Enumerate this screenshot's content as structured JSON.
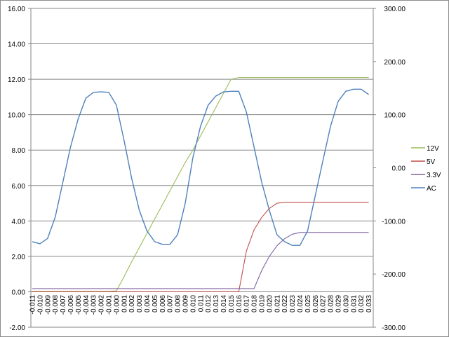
{
  "chart_data": {
    "type": "line",
    "title": "",
    "xlabel": "",
    "ylabel": "",
    "categories": [
      "-0.011",
      "-0.010",
      "-0.009",
      "-0.008",
      "-0.007",
      "-0.006",
      "-0.005",
      "-0.004",
      "-0.003",
      "-0.002",
      "-0.001",
      "-0.000",
      "0.001",
      "0.002",
      "0.003",
      "0.004",
      "0.005",
      "0.006",
      "0.007",
      "0.008",
      "0.009",
      "0.010",
      "0.011",
      "0.012",
      "0.013",
      "0.014",
      "0.015",
      "0.016",
      "0.017",
      "0.018",
      "0.019",
      "0.020",
      "0.021",
      "0.022",
      "0.023",
      "0.024",
      "0.025",
      "0.026",
      "0.027",
      "0.028",
      "0.029",
      "0.030",
      "0.031",
      "0.032",
      "0.033"
    ],
    "y_left": {
      "ylim": [
        -2,
        16
      ],
      "ticks": [
        "-2.00",
        "0.00",
        "2.00",
        "4.00",
        "6.00",
        "8.00",
        "10.00",
        "12.00",
        "14.00",
        "16.00"
      ]
    },
    "y_right": {
      "ylim": [
        -300,
        300
      ],
      "ticks": [
        "-300.00",
        "-200.00",
        "-100.00",
        "0.00",
        "100.00",
        "200.00",
        "300.00"
      ]
    },
    "grid": "horizontal",
    "legend_position": "right",
    "series": [
      {
        "name": "12V",
        "axis": "left",
        "color": "#9BBB59",
        "values": [
          0.02,
          0.02,
          0.02,
          0.02,
          0.02,
          0.02,
          0.02,
          0.02,
          0.02,
          0.02,
          0.02,
          0.05,
          0.85,
          1.7,
          2.5,
          3.3,
          4.1,
          4.9,
          5.7,
          6.5,
          7.3,
          8.0,
          8.8,
          9.6,
          10.4,
          11.2,
          12.0,
          12.1,
          12.1,
          12.1,
          12.1,
          12.1,
          12.1,
          12.1,
          12.1,
          12.1,
          12.1,
          12.1,
          12.1,
          12.1,
          12.1,
          12.1,
          12.1,
          12.1,
          12.1
        ]
      },
      {
        "name": "5V",
        "axis": "left",
        "color": "#C0504D",
        "values": [
          0,
          0,
          0,
          0,
          0,
          0,
          0,
          0,
          0,
          0,
          0,
          0,
          0,
          0,
          0,
          0,
          0,
          0,
          0,
          0,
          0,
          0,
          0,
          0,
          0,
          0,
          0,
          0,
          2.3,
          3.5,
          4.2,
          4.7,
          5.0,
          5.05,
          5.05,
          5.05,
          5.05,
          5.05,
          5.05,
          5.05,
          5.05,
          5.05,
          5.05,
          5.05,
          5.05
        ]
      },
      {
        "name": "3.3V",
        "axis": "left",
        "color": "#8064A2",
        "values": [
          0.18,
          0.18,
          0.18,
          0.18,
          0.18,
          0.18,
          0.18,
          0.18,
          0.18,
          0.18,
          0.18,
          0.18,
          0.18,
          0.18,
          0.18,
          0.18,
          0.18,
          0.18,
          0.18,
          0.18,
          0.18,
          0.18,
          0.18,
          0.18,
          0.18,
          0.18,
          0.18,
          0.18,
          0.18,
          0.18,
          1.2,
          2.0,
          2.6,
          3.0,
          3.25,
          3.35,
          3.35,
          3.35,
          3.35,
          3.35,
          3.35,
          3.35,
          3.35,
          3.35,
          3.35
        ]
      },
      {
        "name": "AC",
        "axis": "right",
        "color": "#4F81BD",
        "values": [
          -139,
          -143,
          -133,
          -93,
          -27,
          39,
          92,
          131,
          142,
          143,
          142,
          118,
          52,
          -20,
          -80,
          -119,
          -139,
          -144,
          -144,
          -126,
          -67,
          19,
          78,
          118,
          135,
          143,
          144,
          144,
          105,
          39,
          -27,
          -80,
          -126,
          -139,
          -146,
          -146,
          -119,
          -53,
          13,
          78,
          125,
          144,
          148,
          148,
          138
        ]
      }
    ]
  }
}
